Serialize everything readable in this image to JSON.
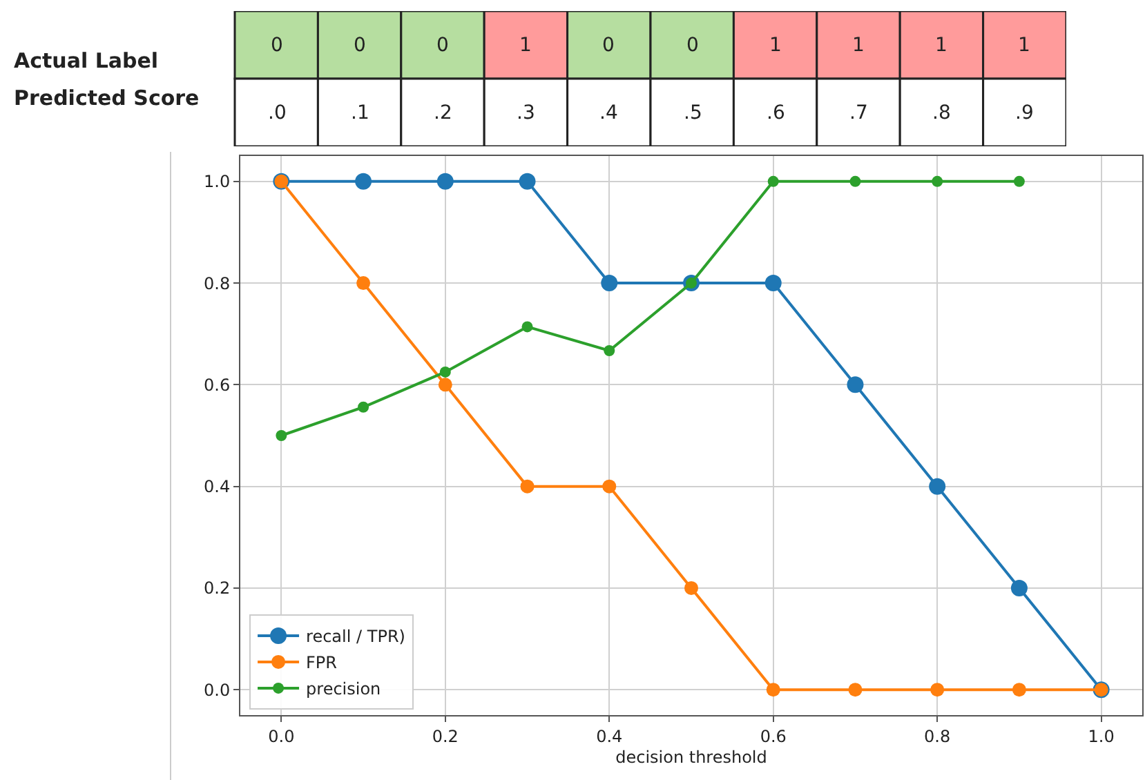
{
  "chart_data": [
    {
      "type": "heatmap",
      "categories": [
        null,
        null,
        null,
        null,
        null,
        null,
        null,
        null,
        null,
        null
      ],
      "y_categories": [
        "Actual Label",
        "Predicted Score"
      ],
      "cells": [
        [
          0,
          0,
          0,
          1,
          0,
          0,
          1,
          1,
          1,
          1
        ],
        [
          null,
          null,
          null,
          null,
          null,
          null,
          null,
          null,
          null,
          null
        ]
      ],
      "cell_labels": [
        [
          "0",
          "0",
          "0",
          "1",
          "0",
          "0",
          "1",
          "1",
          "1",
          "1"
        ],
        [
          ".0",
          ".1",
          ".2",
          ".3",
          ".4",
          ".5",
          ".6",
          ".7",
          ".8",
          ".9"
        ]
      ]
    },
    {
      "type": "line",
      "xlabel": "decision threshold",
      "x": [
        0,
        0.1,
        0.2,
        0.3,
        0.4,
        0.5,
        0.6,
        0.7,
        0.8,
        0.9,
        1.0
      ],
      "series": [
        {
          "name": "recall / TPR)",
          "color": "#1f77b4",
          "values": [
            1,
            1,
            1,
            1,
            0.8,
            0.8,
            0.8,
            0.6,
            0.4,
            0.2,
            0
          ]
        },
        {
          "name": "FPR",
          "color": "#ff7f0e",
          "values": [
            1,
            0.8,
            0.6,
            0.4,
            0.4,
            0.2,
            0,
            0,
            0,
            0,
            0
          ]
        },
        {
          "name": "precision",
          "color": "#2ca02c",
          "values": [
            0.5,
            0.556,
            0.625,
            0.714,
            0.667,
            0.8,
            1,
            1,
            1,
            1,
            null
          ]
        }
      ],
      "xlim": [
        -0.05,
        1.05
      ],
      "ylim": [
        -0.05,
        1.05
      ],
      "xticks": [
        {
          "value": 0,
          "label": "0.0"
        },
        {
          "value": 0.2,
          "label": "0.2"
        },
        {
          "value": 0.4,
          "label": "0.4"
        },
        {
          "value": 0.6,
          "label": "0.6"
        },
        {
          "value": 0.8,
          "label": "0.8"
        },
        {
          "value": 1,
          "label": "1.0"
        }
      ],
      "yticks": [
        {
          "value": 0,
          "label": "0.0"
        },
        {
          "value": 0.2,
          "label": "0.2"
        },
        {
          "value": 0.4,
          "label": "0.4"
        },
        {
          "value": 0.6,
          "label": "0.6"
        },
        {
          "value": 0.8,
          "label": "0.8"
        },
        {
          "value": 1,
          "label": "1.0"
        }
      ],
      "grid": true,
      "legend": "bottom left",
      "marker": "circle",
      "line_style": "solid"
    }
  ]
}
